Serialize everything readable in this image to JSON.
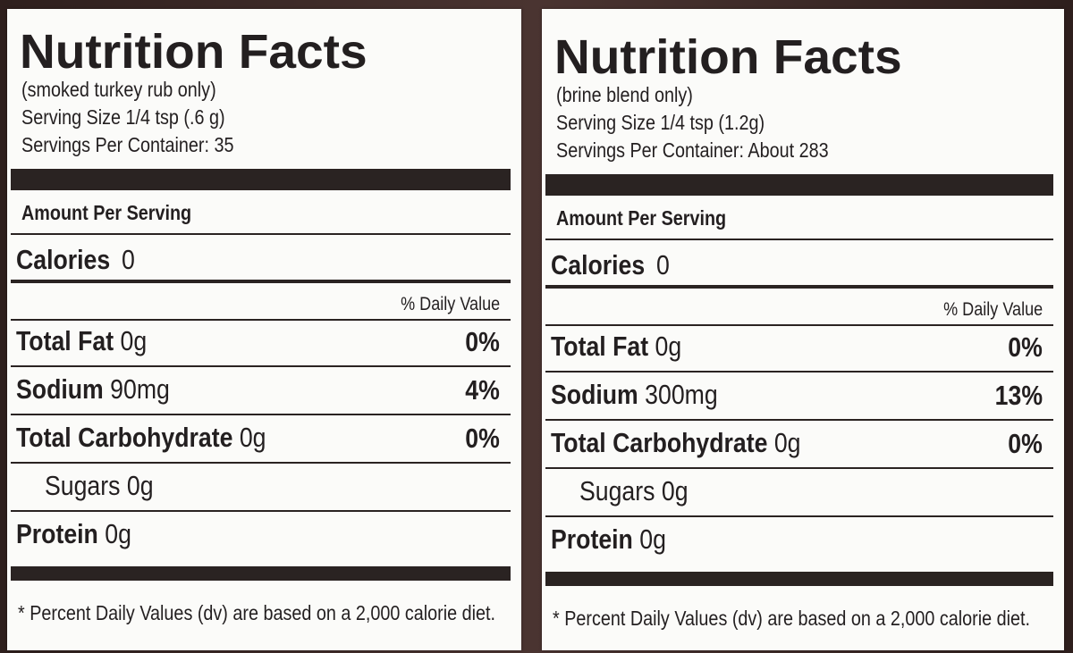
{
  "panels": [
    {
      "title": "Nutrition Facts",
      "subtitle": "(smoked turkey rub only)",
      "serving_size": "Serving Size 1/4 tsp (.6 g)",
      "servings": "Servings Per Container: 35",
      "amount_per_serving": "Amount Per Serving",
      "calories_label": "Calories",
      "calories_value": "0",
      "daily_value_header": "% Daily Value",
      "rows": [
        {
          "name": "Total Fat",
          "amount": "0g",
          "dv": "0%"
        },
        {
          "name": "Sodium",
          "amount": "90mg",
          "dv": "4%"
        },
        {
          "name": "Total Carbohydrate",
          "amount": "0g",
          "dv": "0%"
        },
        {
          "name": "Sugars",
          "amount": "0g"
        },
        {
          "name": "Protein",
          "amount": "0g"
        }
      ],
      "footnote": "* Percent Daily Values (dv) are based on a 2,000 calorie diet."
    },
    {
      "title": "Nutrition Facts",
      "subtitle": "(brine blend only)",
      "serving_size": "Serving Size 1/4 tsp (1.2g)",
      "servings": "Servings Per Container: About 283",
      "amount_per_serving": "Amount Per Serving",
      "calories_label": "Calories",
      "calories_value": "0",
      "daily_value_header": "% Daily Value",
      "rows": [
        {
          "name": "Total Fat",
          "amount": "0g",
          "dv": "0%"
        },
        {
          "name": "Sodium",
          "amount": "300mg",
          "dv": "13%"
        },
        {
          "name": "Total Carbohydrate",
          "amount": "0g",
          "dv": "0%"
        },
        {
          "name": "Sugars",
          "amount": "0g"
        },
        {
          "name": "Protein",
          "amount": "0g"
        }
      ],
      "footnote": "* Percent Daily Values (dv) are based on a 2,000 calorie diet."
    }
  ]
}
